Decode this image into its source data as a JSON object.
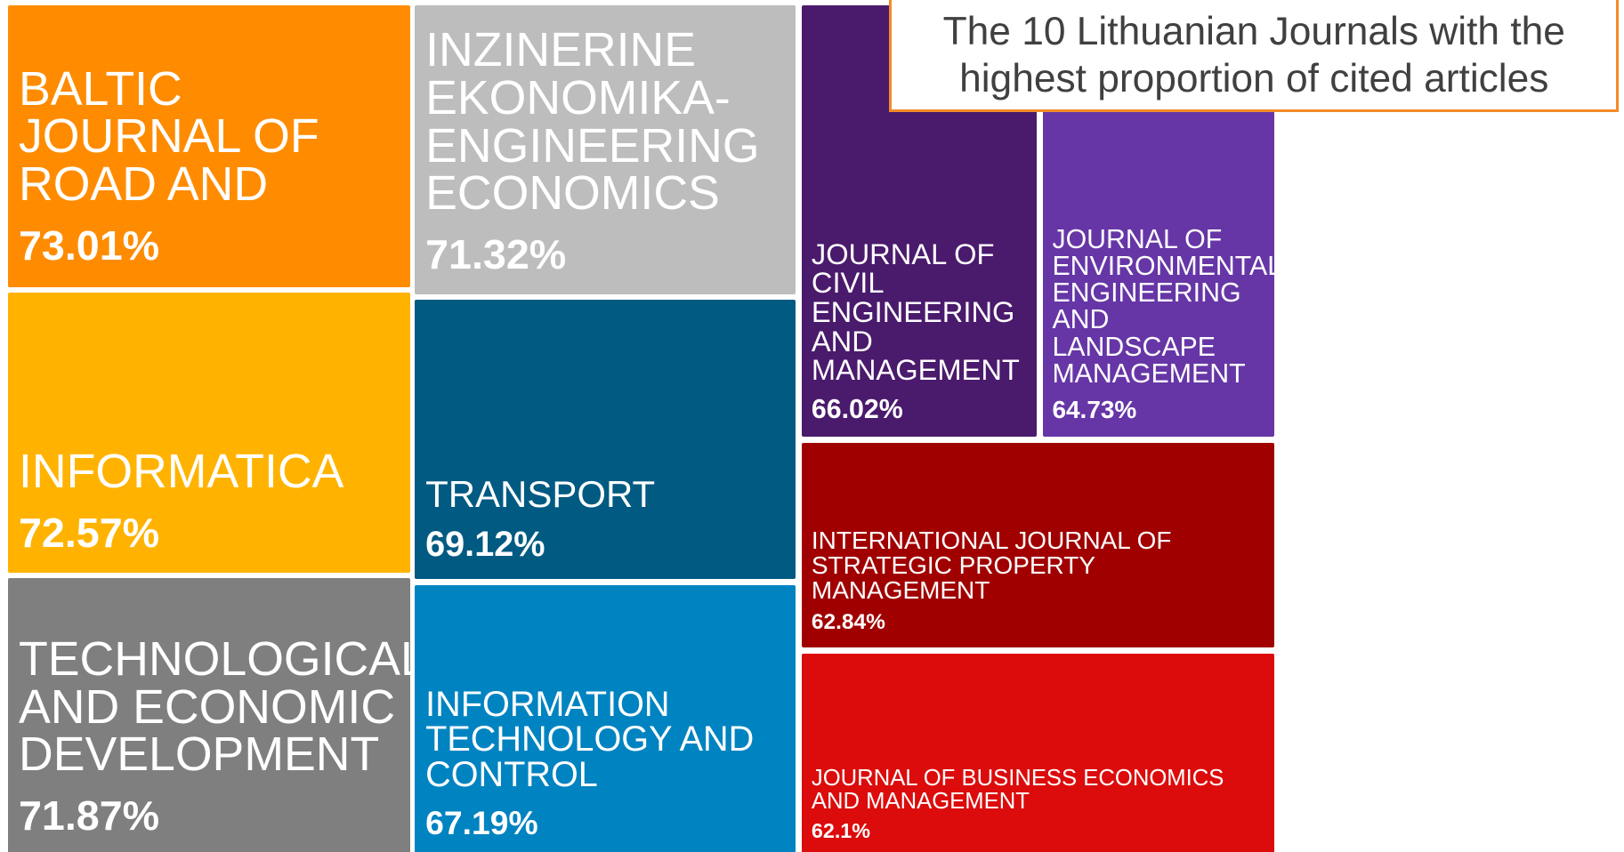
{
  "chart_data": {
    "type": "treemap",
    "title": "The 10 Lithuanian Journals with the highest proportion of cited articles",
    "categories": [
      "BALTIC JOURNAL OF ROAD AND",
      "INFORMATICA",
      "TECHNOLOGICAL AND ECONOMIC DEVELOPMENT",
      "INZINERINE EKONOMIKA-ENGINEERING ECONOMICS",
      "TRANSPORT",
      "INFORMATION TECHNOLOGY AND CONTROL",
      "JOURNAL OF CIVIL ENGINEERING AND MANAGEMENT",
      "JOURNAL OF ENVIRONMENTAL ENGINEERING AND LANDSCAPE MANAGEMENT",
      "INTERNATIONAL JOURNAL OF STRATEGIC PROPERTY MANAGEMENT",
      "JOURNAL OF BUSINESS ECONOMICS AND MANAGEMENT"
    ],
    "values": [
      73.01,
      72.57,
      71.87,
      71.32,
      69.12,
      67.19,
      66.02,
      64.73,
      62.84,
      62.1
    ],
    "value_labels": [
      "73.01%",
      "72.57%",
      "71.87%",
      "71.32%",
      "69.12%",
      "67.19%",
      "66.02%",
      "64.73%",
      "62.84%",
      "62.1%"
    ],
    "colors": [
      "#FF8C00",
      "#FFB300",
      "#7F7F7F",
      "#BDBDBD",
      "#005A82",
      "#0083C1",
      "#4A1A6C",
      "#6636A6",
      "#A00000",
      "#DC0C0C"
    ]
  }
}
